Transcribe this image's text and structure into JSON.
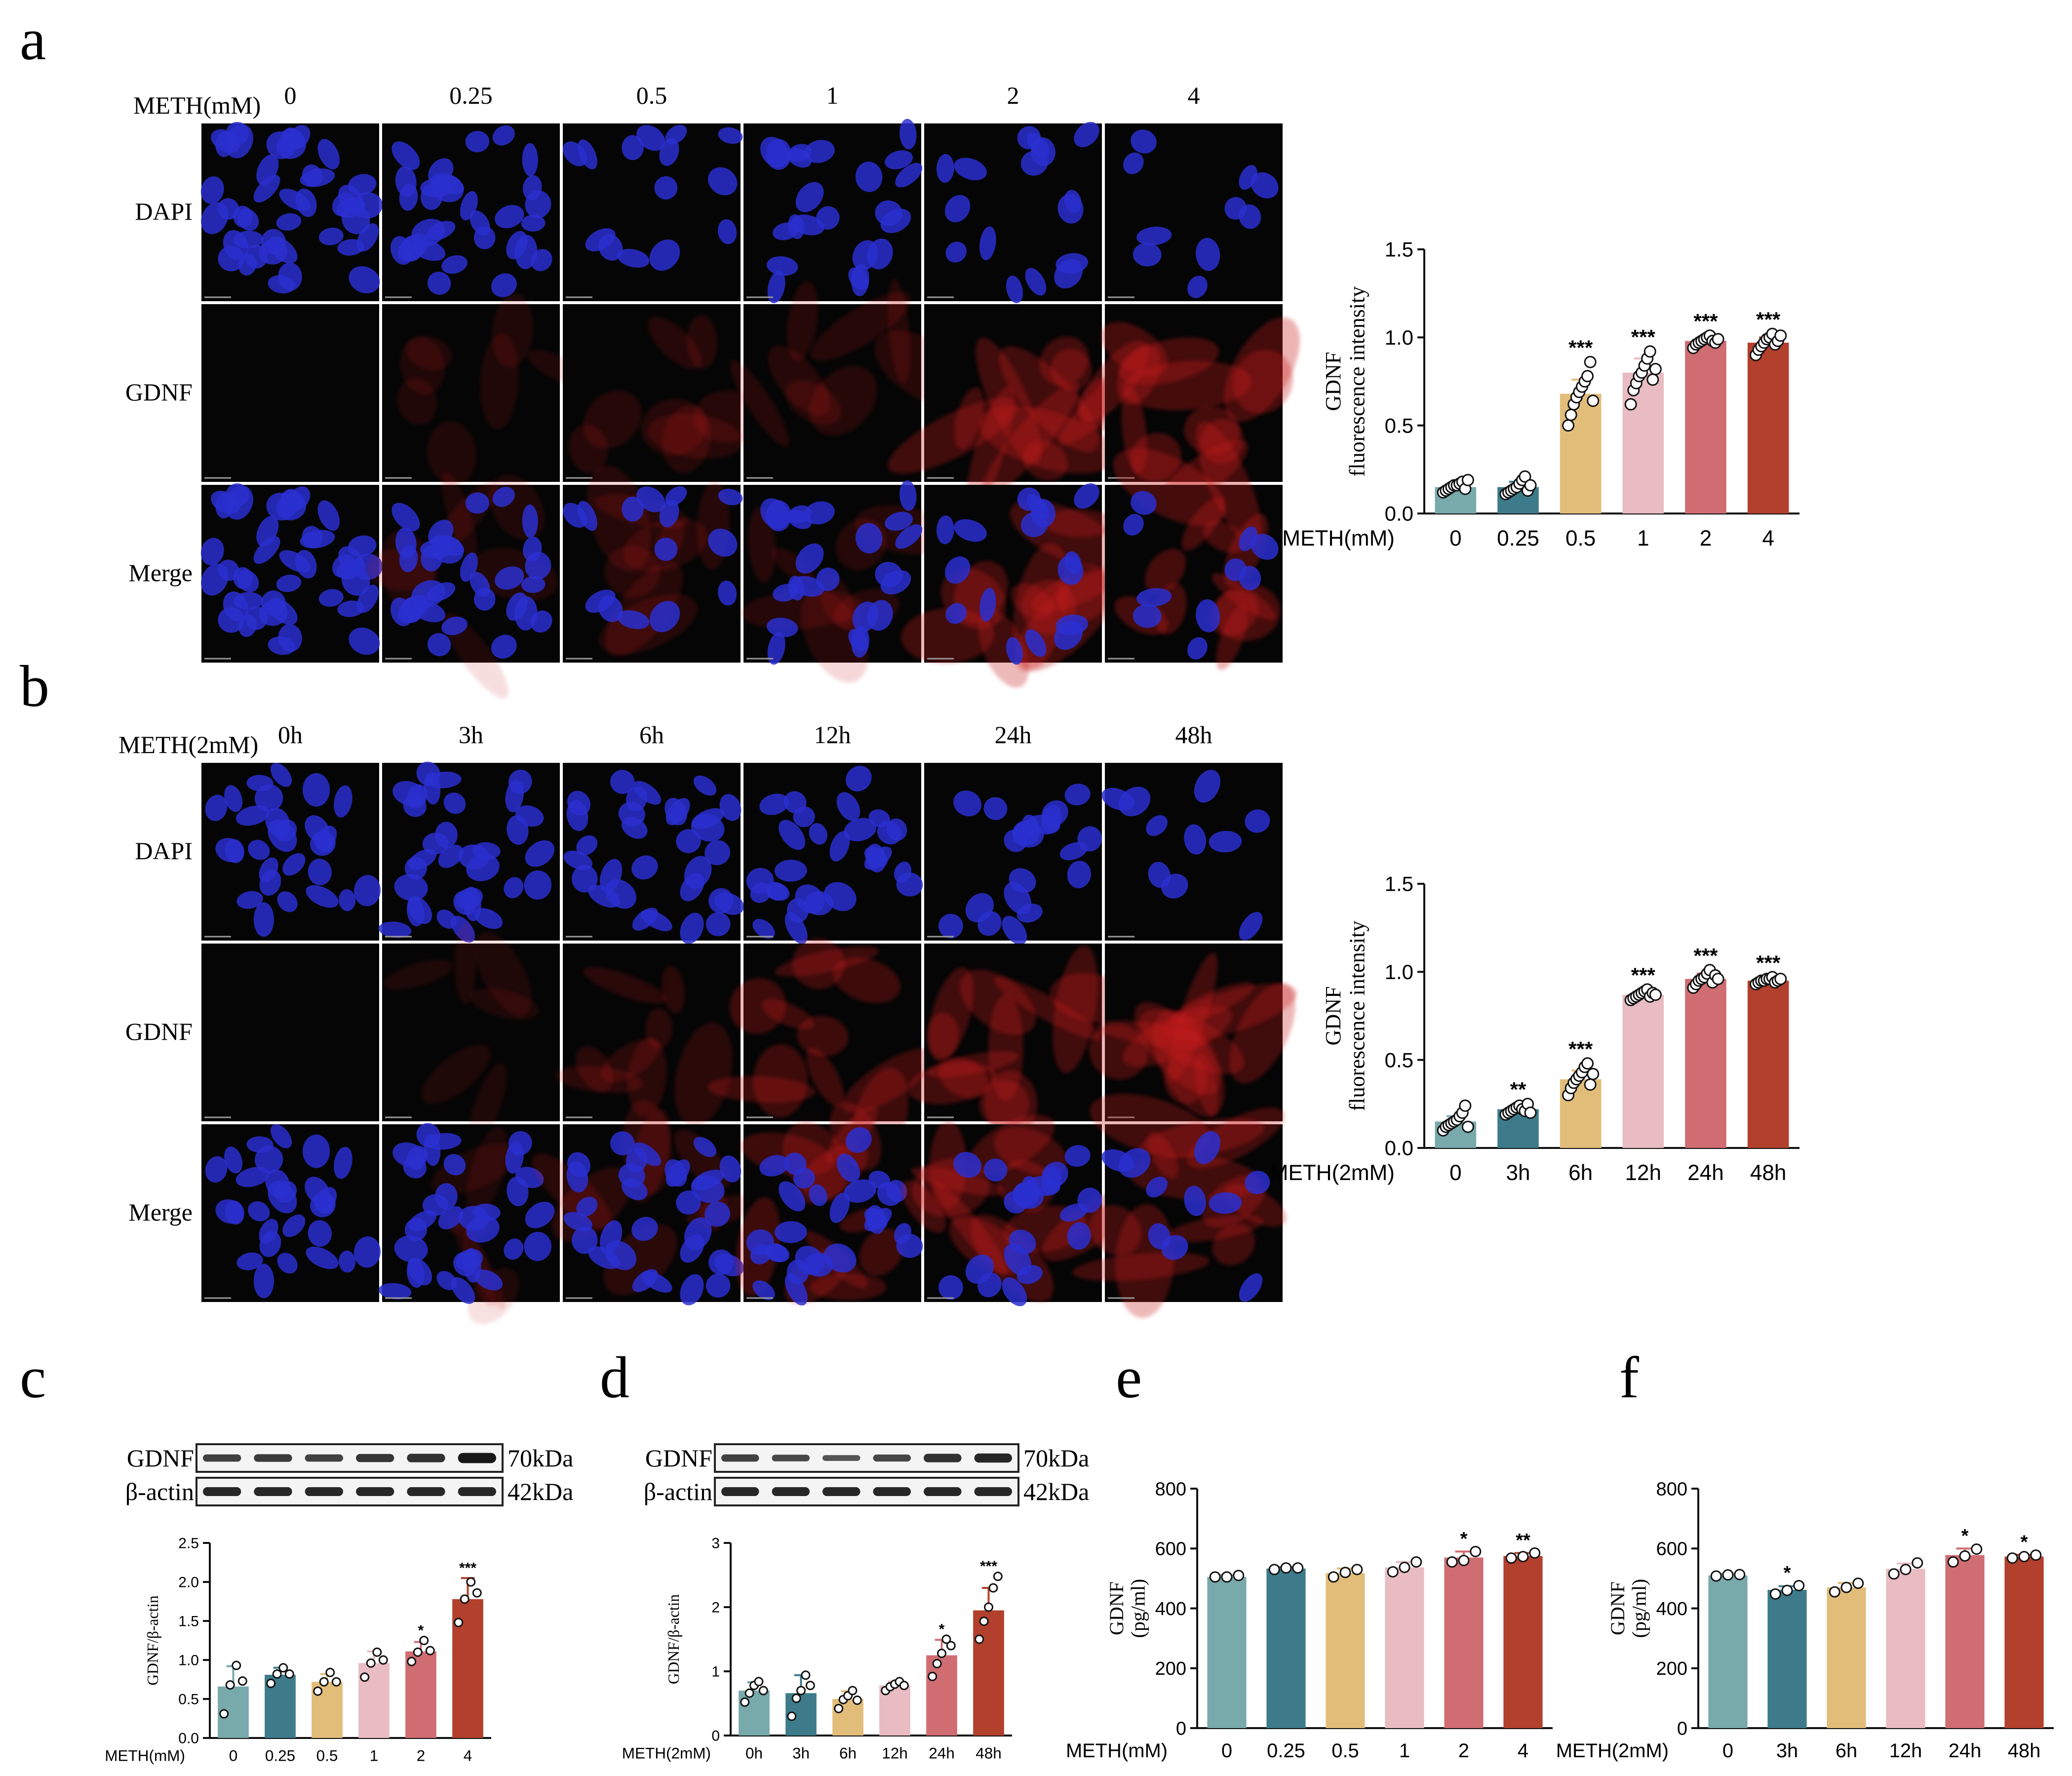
{
  "panel_letters": [
    "a",
    "b",
    "c",
    "d",
    "e",
    "f"
  ],
  "colors": {
    "bars": [
      "#78a9ab",
      "#3d7b8a",
      "#e2bd7a",
      "#e8bcc2",
      "#cf6d72",
      "#b2402d"
    ],
    "blue_stain": "#2a2fd0",
    "red_stain": "#c81e1e"
  },
  "micro_a": {
    "condition_label": "METH(mM)",
    "columns": [
      "0",
      "0.25",
      "0.5",
      "1",
      "2",
      "4"
    ],
    "rows": [
      "DAPI",
      "GDNF",
      "Merge"
    ]
  },
  "micro_b": {
    "condition_label": "METH(2mM)",
    "columns": [
      "0h",
      "3h",
      "6h",
      "12h",
      "24h",
      "48h"
    ],
    "rows": [
      "DAPI",
      "GDNF",
      "Merge"
    ]
  },
  "blot_c": {
    "rows": [
      {
        "protein": "GDNF",
        "size": "70kDa"
      },
      {
        "protein": "β-actin",
        "size": "42kDa"
      }
    ]
  },
  "blot_d": {
    "rows": [
      {
        "protein": "GDNF",
        "size": "70kDa"
      },
      {
        "protein": "β-actin",
        "size": "42kDa"
      }
    ]
  },
  "chart_data": [
    {
      "id": "a",
      "type": "bar",
      "ylabel": [
        "GDNF",
        "fluorescence intensity"
      ],
      "xlabel": "METH(mM)",
      "categories": [
        "0",
        "0.25",
        "0.5",
        "1",
        "2",
        "4"
      ],
      "values": [
        0.15,
        0.15,
        0.68,
        0.8,
        0.98,
        0.97
      ],
      "errors": [
        0.02,
        0.03,
        0.08,
        0.08,
        0.02,
        0.03
      ],
      "significance": [
        "",
        "",
        "***",
        "***",
        "***",
        "***"
      ],
      "ylim": [
        0,
        1.5
      ],
      "yticks": [
        "0.0",
        "0.5",
        "1.0",
        "1.5"
      ],
      "points": [
        [
          0.12,
          0.13,
          0.14,
          0.15,
          0.16,
          0.16,
          0.17,
          0.18,
          0.14,
          0.19
        ],
        [
          0.11,
          0.12,
          0.13,
          0.14,
          0.15,
          0.17,
          0.19,
          0.21,
          0.13,
          0.16
        ],
        [
          0.5,
          0.56,
          0.62,
          0.66,
          0.69,
          0.72,
          0.75,
          0.78,
          0.86,
          0.64
        ],
        [
          0.62,
          0.7,
          0.74,
          0.78,
          0.8,
          0.84,
          0.88,
          0.92,
          0.76,
          0.82
        ],
        [
          0.94,
          0.96,
          0.97,
          0.98,
          0.99,
          1.0,
          1.01,
          0.98,
          0.97,
          0.99
        ],
        [
          0.9,
          0.93,
          0.95,
          0.97,
          0.99,
          1.0,
          1.02,
          0.96,
          0.98,
          1.01
        ]
      ]
    },
    {
      "id": "b",
      "type": "bar",
      "ylabel": [
        "GDNF",
        "fluorescence intensity"
      ],
      "xlabel": "METH(2mM)",
      "categories": [
        "0",
        "3h",
        "6h",
        "12h",
        "24h",
        "48h"
      ],
      "values": [
        0.15,
        0.22,
        0.39,
        0.87,
        0.96,
        0.95
      ],
      "errors": [
        0.03,
        0.02,
        0.05,
        0.02,
        0.03,
        0.01
      ],
      "significance": [
        "",
        "**",
        "***",
        "***",
        "***",
        "***"
      ],
      "ylim": [
        0,
        1.5
      ],
      "yticks": [
        "0.0",
        "0.5",
        "1.0",
        "1.5"
      ],
      "points": [
        [
          0.1,
          0.12,
          0.13,
          0.14,
          0.15,
          0.16,
          0.18,
          0.2,
          0.24,
          0.12
        ],
        [
          0.19,
          0.2,
          0.21,
          0.22,
          0.23,
          0.24,
          0.22,
          0.21,
          0.25,
          0.2
        ],
        [
          0.3,
          0.34,
          0.37,
          0.39,
          0.41,
          0.43,
          0.46,
          0.48,
          0.36,
          0.42
        ],
        [
          0.84,
          0.85,
          0.86,
          0.87,
          0.88,
          0.89,
          0.9,
          0.86,
          0.88,
          0.87
        ],
        [
          0.91,
          0.93,
          0.95,
          0.96,
          0.97,
          0.99,
          1.01,
          0.94,
          0.98,
          0.96
        ],
        [
          0.93,
          0.94,
          0.95,
          0.95,
          0.96,
          0.96,
          0.97,
          0.94,
          0.95,
          0.96
        ]
      ]
    },
    {
      "id": "c",
      "type": "bar",
      "ylabel": [
        "GDNF/β-actin"
      ],
      "xlabel": "METH(mM)",
      "categories": [
        "0",
        "0.25",
        "0.5",
        "1",
        "2",
        "4"
      ],
      "values": [
        0.66,
        0.81,
        0.72,
        0.96,
        1.11,
        1.78
      ],
      "errors": [
        0.26,
        0.09,
        0.1,
        0.15,
        0.12,
        0.27
      ],
      "significance": [
        "",
        "",
        "",
        "",
        "*",
        "***"
      ],
      "ylim": [
        0,
        2.5
      ],
      "yticks": [
        "0.0",
        "0.5",
        "1.0",
        "1.5",
        "2.0",
        "2.5"
      ],
      "points": [
        [
          0.31,
          0.68,
          0.93,
          0.73
        ],
        [
          0.7,
          0.82,
          0.9,
          0.82
        ],
        [
          0.6,
          0.72,
          0.84,
          0.72
        ],
        [
          0.78,
          0.96,
          1.1,
          1.0
        ],
        [
          0.98,
          1.1,
          1.25,
          1.12
        ],
        [
          1.48,
          1.78,
          2.0,
          1.86
        ]
      ]
    },
    {
      "id": "d",
      "type": "bar",
      "ylabel": [
        "GDNF/β-actin"
      ],
      "xlabel": "METH(2mM)",
      "categories": [
        "0h",
        "3h",
        "6h",
        "12h",
        "24h",
        "48h"
      ],
      "values": [
        0.7,
        0.66,
        0.57,
        0.78,
        1.25,
        1.95
      ],
      "errors": [
        0.13,
        0.28,
        0.12,
        0.06,
        0.24,
        0.35
      ],
      "significance": [
        "",
        "",
        "",
        "",
        "*",
        "***"
      ],
      "ylim": [
        0,
        3
      ],
      "yticks": [
        "0",
        "1",
        "2",
        "3"
      ],
      "points": [
        [
          0.52,
          0.66,
          0.78,
          0.84,
          0.7
        ],
        [
          0.3,
          0.58,
          0.7,
          0.94,
          0.78
        ],
        [
          0.42,
          0.56,
          0.62,
          0.7,
          0.55
        ],
        [
          0.7,
          0.76,
          0.8,
          0.84,
          0.78
        ],
        [
          0.92,
          1.12,
          1.28,
          1.5,
          1.4
        ],
        [
          1.5,
          1.78,
          2.0,
          2.3,
          2.48
        ]
      ]
    },
    {
      "id": "e",
      "type": "bar",
      "ylabel": [
        "GDNF",
        "(pg/ml)"
      ],
      "xlabel": "METH(mM)",
      "categories": [
        "0",
        "0.25",
        "0.5",
        "1",
        "2",
        "4"
      ],
      "values": [
        505,
        533,
        518,
        537,
        570,
        575
      ],
      "errors": [
        6,
        5,
        15,
        18,
        20,
        10
      ],
      "significance": [
        "",
        "",
        "",
        "",
        "*",
        "**"
      ],
      "ylim": [
        0,
        800
      ],
      "yticks": [
        "0",
        "200",
        "400",
        "600",
        "800"
      ],
      "points": [
        [
          505,
          505,
          510
        ],
        [
          530,
          535,
          535
        ],
        [
          505,
          520,
          530
        ],
        [
          522,
          537,
          555
        ],
        [
          555,
          560,
          590
        ],
        [
          568,
          573,
          585
        ]
      ]
    },
    {
      "id": "f",
      "type": "bar",
      "ylabel": [
        "GDNF",
        "(pg/ml)"
      ],
      "xlabel": "METH(2mM)",
      "categories": [
        "0",
        "3h",
        "6h",
        "12h",
        "24h",
        "48h"
      ],
      "values": [
        510,
        462,
        470,
        532,
        578,
        573
      ],
      "errors": [
        5,
        12,
        15,
        18,
        22,
        6
      ],
      "significance": [
        "",
        "*",
        "",
        "",
        "*",
        "*"
      ],
      "ylim": [
        0,
        800
      ],
      "yticks": [
        "0",
        "200",
        "400",
        "600",
        "800"
      ],
      "points": [
        [
          508,
          512,
          513
        ],
        [
          448,
          460,
          476
        ],
        [
          455,
          470,
          484
        ],
        [
          515,
          530,
          552
        ],
        [
          555,
          575,
          598
        ],
        [
          568,
          573,
          578
        ]
      ]
    }
  ]
}
